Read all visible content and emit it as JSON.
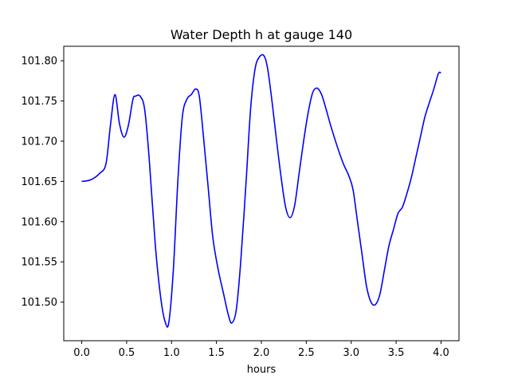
{
  "chart_data": {
    "type": "line",
    "title": "Water Depth h at gauge 140",
    "xlabel": "hours",
    "ylabel": "",
    "xlim": [
      -0.2,
      4.2
    ],
    "ylim": [
      101.452,
      101.818
    ],
    "x_ticks": [
      0.0,
      0.5,
      1.0,
      1.5,
      2.0,
      2.5,
      3.0,
      3.5,
      4.0
    ],
    "x_tick_labels": [
      "0.0",
      "0.5",
      "1.0",
      "1.5",
      "2.0",
      "2.5",
      "3.0",
      "3.5",
      "4.0"
    ],
    "y_ticks": [
      101.5,
      101.55,
      101.6,
      101.65,
      101.7,
      101.75,
      101.8
    ],
    "y_tick_labels": [
      "101.50",
      "101.55",
      "101.60",
      "101.65",
      "101.70",
      "101.75",
      "101.80"
    ],
    "grid": false,
    "colors": {
      "line": "#0000ff",
      "axes": "#000000"
    },
    "series": [
      {
        "x": [
          0.0,
          0.1,
          0.2,
          0.27,
          0.32,
          0.37,
          0.42,
          0.47,
          0.52,
          0.57,
          0.6,
          0.65,
          0.7,
          0.75,
          0.82,
          0.88,
          0.93,
          0.97,
          1.02,
          1.07,
          1.12,
          1.17,
          1.22,
          1.27,
          1.31,
          1.36,
          1.41,
          1.46,
          1.52,
          1.58,
          1.63,
          1.67,
          1.72,
          1.77,
          1.83,
          1.88,
          1.93,
          1.98,
          2.03,
          2.07,
          2.12,
          2.17,
          2.22,
          2.27,
          2.32,
          2.37,
          2.42,
          2.47,
          2.52,
          2.57,
          2.62,
          2.67,
          2.72,
          2.77,
          2.82,
          2.87,
          2.92,
          2.97,
          3.02,
          3.07,
          3.12,
          3.17,
          3.22,
          3.27,
          3.32,
          3.37,
          3.42,
          3.47,
          3.52,
          3.57,
          3.62,
          3.67,
          3.72,
          3.77,
          3.82,
          3.87,
          3.92,
          3.97,
          4.0
        ],
        "values": [
          101.65,
          101.652,
          101.66,
          101.672,
          101.72,
          101.758,
          101.722,
          101.705,
          101.72,
          101.752,
          101.756,
          101.756,
          101.74,
          101.68,
          101.57,
          101.505,
          101.475,
          101.475,
          101.54,
          101.65,
          101.73,
          101.752,
          101.758,
          101.765,
          101.755,
          101.7,
          101.64,
          101.58,
          101.54,
          101.51,
          101.485,
          101.474,
          101.49,
          101.55,
          101.65,
          101.74,
          101.79,
          101.805,
          101.806,
          101.79,
          101.748,
          101.7,
          101.655,
          101.618,
          101.605,
          101.62,
          101.66,
          101.7,
          101.735,
          101.76,
          101.766,
          101.758,
          101.74,
          101.72,
          101.702,
          101.685,
          101.67,
          101.658,
          101.64,
          101.6,
          101.56,
          101.52,
          101.5,
          101.497,
          101.51,
          101.54,
          101.57,
          101.59,
          101.61,
          101.618,
          101.635,
          101.655,
          101.68,
          101.705,
          101.73,
          101.748,
          101.765,
          101.784,
          101.785
        ]
      }
    ]
  }
}
